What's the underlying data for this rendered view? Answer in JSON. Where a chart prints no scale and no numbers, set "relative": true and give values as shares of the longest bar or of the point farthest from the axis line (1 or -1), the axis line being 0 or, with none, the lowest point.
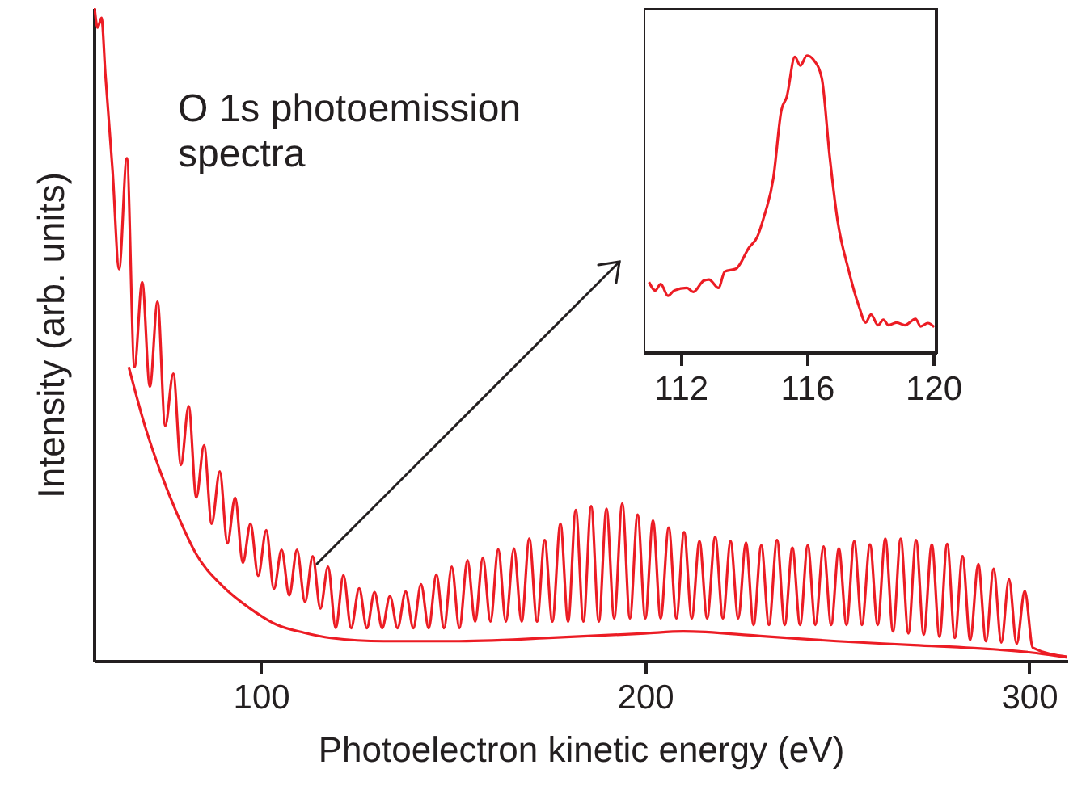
{
  "chart_data": [
    {
      "type": "line",
      "xlabel": "Photoelectron kinetic energy (eV)",
      "ylabel": "Intensity (arb. units)",
      "xlim": [
        56.5,
        310
      ],
      "xticks": [
        100,
        200,
        300
      ],
      "relative": true,
      "annotations": [
        "O 1s photoemission spectra"
      ],
      "series": [
        {
          "color": "#ec1c24",
          "x": [
            56.7,
            57.5,
            58.5,
            59.5,
            61.4,
            63.1,
            65.1,
            67.1,
            69.1,
            71.1,
            73.1,
            75.1,
            77.2,
            79.2,
            81.2,
            83.2,
            85.2,
            87.2,
            89.3,
            91.3,
            93.3,
            95.3,
            97.3,
            99.3,
            101.4,
            103.4,
            105.4,
            107.4,
            109.4,
            111.5,
            113.5,
            115.5,
            117.5,
            119.5,
            121.5,
            123.5,
            125.6,
            127.6,
            129.6,
            131.6,
            133.6,
            135.6,
            137.7,
            139.7,
            141.7,
            143.7,
            145.7,
            147.7,
            149.7,
            151.7,
            153.8,
            155.8,
            157.8,
            159.8,
            161.8,
            163.8,
            165.9,
            167.9,
            169.9,
            171.9,
            173.9,
            175.9,
            178.0,
            180.0,
            182.0,
            184.0,
            186.0,
            188.0,
            190.0,
            192.0,
            194.1,
            196.1,
            198.1,
            200.1,
            202.1,
            204.1,
            206.2,
            208.2,
            210.2,
            212.2,
            214.2,
            216.2,
            218.3,
            220.3,
            222.3,
            224.3,
            226.3,
            228.3,
            230.3,
            232.3,
            234.4,
            236.4,
            238.4,
            240.4,
            242.4,
            244.4,
            246.5,
            248.5,
            250.5,
            252.5,
            254.5,
            256.5,
            258.6,
            260.6,
            262.6,
            264.6,
            266.6,
            268.6,
            270.6,
            272.6,
            274.7,
            276.7,
            278.7,
            280.7,
            282.7,
            284.7,
            286.8,
            288.8,
            290.8,
            292.8,
            294.8,
            296.8,
            298.9,
            301,
            310
          ],
          "values": [
            1.0,
            0.97,
            0.985,
            0.9,
            0.75,
            0.6,
            0.77,
            0.45,
            0.58,
            0.42,
            0.55,
            0.36,
            0.44,
            0.3,
            0.39,
            0.25,
            0.33,
            0.21,
            0.29,
            0.18,
            0.25,
            0.15,
            0.21,
            0.13,
            0.2,
            0.11,
            0.17,
            0.1,
            0.17,
            0.09,
            0.16,
            0.08,
            0.144,
            0.05,
            0.131,
            0.05,
            0.111,
            0.05,
            0.105,
            0.05,
            0.099,
            0.05,
            0.106,
            0.05,
            0.117,
            0.05,
            0.132,
            0.05,
            0.144,
            0.05,
            0.154,
            0.06,
            0.158,
            0.06,
            0.171,
            0.06,
            0.172,
            0.06,
            0.187,
            0.06,
            0.185,
            0.06,
            0.21,
            0.06,
            0.231,
            0.06,
            0.237,
            0.06,
            0.233,
            0.065,
            0.241,
            0.065,
            0.224,
            0.065,
            0.215,
            0.065,
            0.204,
            0.065,
            0.197,
            0.065,
            0.183,
            0.065,
            0.19,
            0.065,
            0.183,
            0.065,
            0.181,
            0.055,
            0.177,
            0.055,
            0.185,
            0.055,
            0.173,
            0.055,
            0.177,
            0.055,
            0.175,
            0.055,
            0.172,
            0.055,
            0.183,
            0.055,
            0.178,
            0.055,
            0.187,
            0.045,
            0.187,
            0.042,
            0.185,
            0.04,
            0.178,
            0.037,
            0.179,
            0.035,
            0.16,
            0.032,
            0.148,
            0.03,
            0.141,
            0.028,
            0.125,
            0.026,
            0.107,
            0.02,
            0.006
          ]
        },
        {
          "color": "#ec1c24",
          "x": [
            65.6,
            69.8,
            74,
            78.2,
            83.2,
            90.1,
            97.2,
            104.2,
            111.2,
            118.2,
            132,
            150,
            175,
            200,
            210,
            230,
            250,
            270,
            292,
            300,
            310
          ],
          "values": [
            0.45,
            0.36,
            0.287,
            0.225,
            0.163,
            0.114,
            0.08,
            0.055,
            0.043,
            0.035,
            0.03,
            0.03,
            0.035,
            0.042,
            0.045,
            0.038,
            0.03,
            0.024,
            0.017,
            0.013,
            0.005
          ]
        }
      ]
    },
    {
      "type": "line",
      "xlim": [
        110.83,
        120.1
      ],
      "xticks": [
        112,
        116,
        120
      ],
      "relative": true,
      "series": [
        {
          "color": "#ec1c24",
          "x": [
            111.0,
            111.2,
            111.37,
            111.6,
            111.8,
            112.2,
            112.4,
            112.73,
            112.9,
            113.2,
            113.4,
            113.75,
            114.17,
            114.43,
            114.63,
            114.94,
            115.19,
            115.36,
            115.62,
            115.79,
            116.0,
            116.2,
            116.47,
            116.72,
            116.97,
            117.31,
            117.65,
            117.86,
            118.03,
            118.25,
            118.42,
            118.59,
            118.84,
            119.1,
            119.44,
            119.6,
            119.83,
            120.03
          ],
          "values": [
            0.236,
            0.208,
            0.23,
            0.19,
            0.208,
            0.217,
            0.203,
            0.241,
            0.245,
            0.217,
            0.272,
            0.281,
            0.353,
            0.389,
            0.453,
            0.589,
            0.815,
            0.86,
            0.996,
            0.966,
            1,
            0.987,
            0.924,
            0.661,
            0.444,
            0.281,
            0.154,
            0.1,
            0.127,
            0.091,
            0.109,
            0.091,
            0.1,
            0.091,
            0.112,
            0.087,
            0.098,
            0.085
          ]
        }
      ]
    }
  ]
}
